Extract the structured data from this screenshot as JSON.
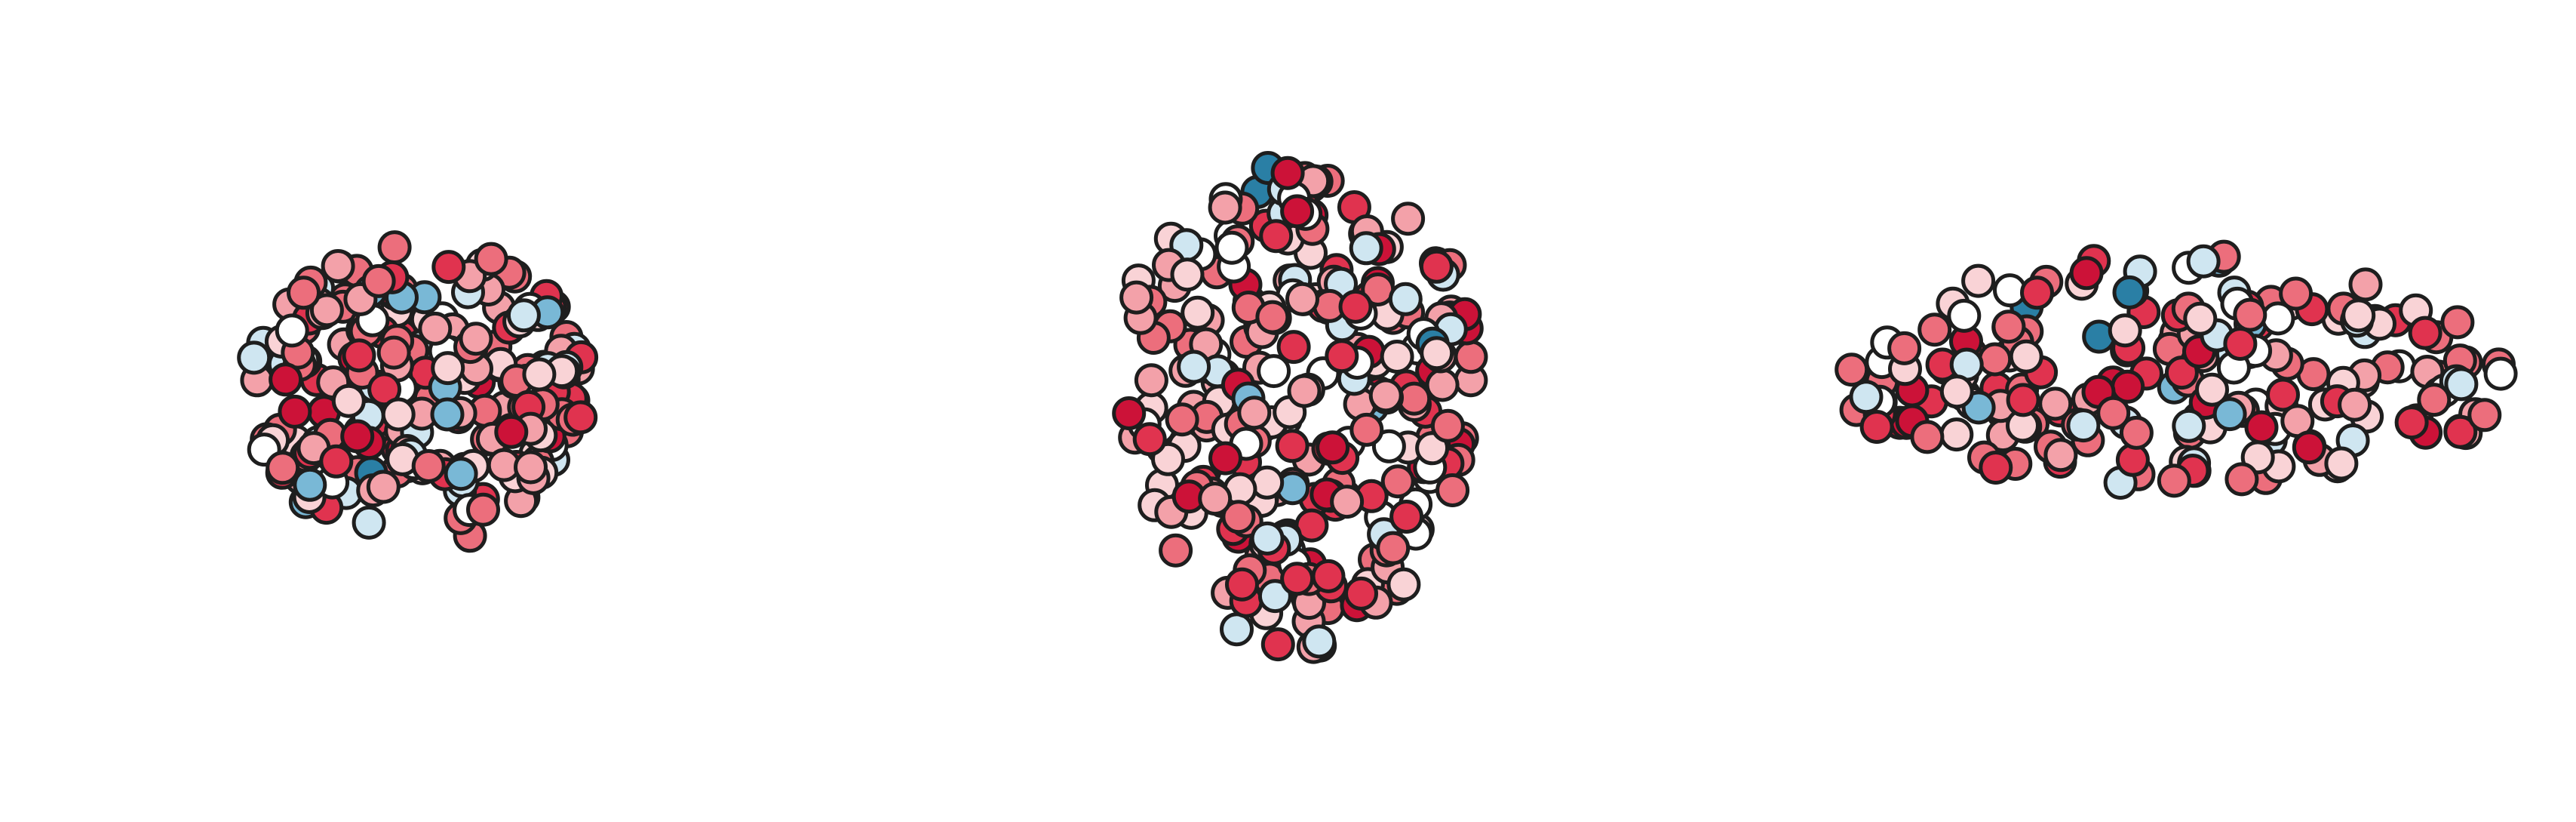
{
  "figure": {
    "type": "brain-node-map",
    "views": [
      "coronal",
      "axial",
      "sagittal"
    ],
    "node_count_per_view": [
      230,
      280,
      200
    ],
    "colormap": {
      "negative_strong": "#2a7fa5",
      "negative": "#79b8d6",
      "negative_light": "#cfe6f1",
      "neutral": "#ffffff",
      "positive_light": "#f9d3d6",
      "positive_mid": "#f3a1a9",
      "positive": "#ec6e7c",
      "positive_strong": "#e0334f",
      "positive_max": "#cc1238"
    },
    "node_outline": "#1e1e1e"
  }
}
